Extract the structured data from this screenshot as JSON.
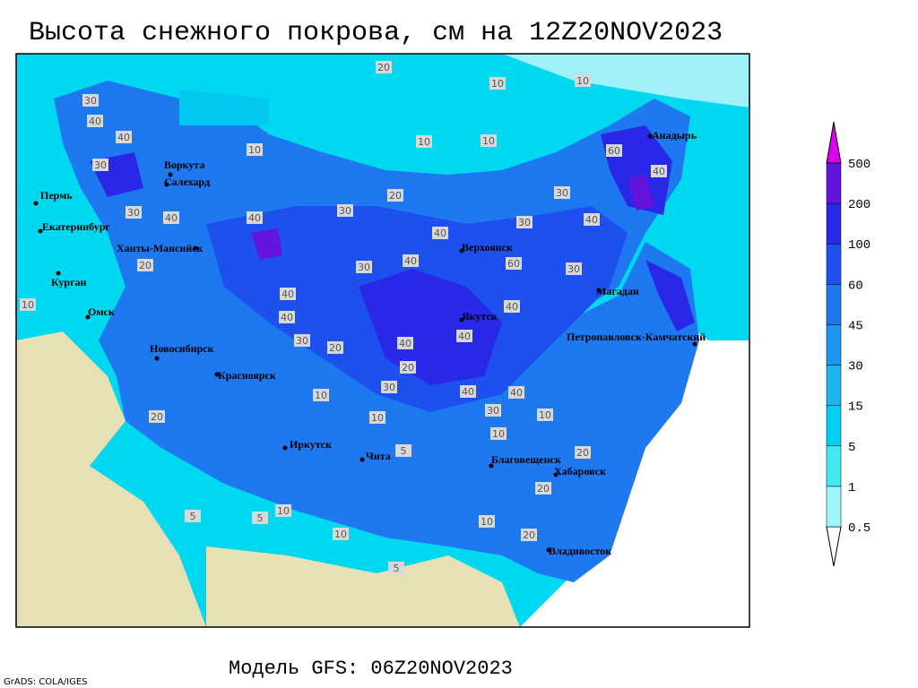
{
  "title": "Высота снежного покрова, см на 12Z20NOV2023",
  "subtitle": "Модель GFS: 06Z20NOV2023",
  "credit": "GrADS: COLA/IGES",
  "cities": [
    "Воркута",
    "Салехард",
    "Пермь",
    "Екатеринбург",
    "Ханты-Мансийск",
    "Курган",
    "Омск",
    "Новосибирск",
    "Красноярск",
    "Иркутск",
    "Чита",
    "Верхоянск",
    "Якутск",
    "Магадан",
    "Анадырь",
    "Петропавловск-Камчатский",
    "Благовещенск",
    "Хабаровск",
    "Владивосток"
  ],
  "legend": {
    "levels": [
      0.5,
      1,
      5,
      15,
      30,
      45,
      60,
      100,
      200,
      500
    ]
  },
  "contour_labels": [
    20,
    10,
    10,
    30,
    40,
    40,
    10,
    10,
    10,
    60,
    30,
    40,
    30,
    20,
    30,
    40,
    30,
    40,
    30,
    40,
    40,
    20,
    30,
    40,
    60,
    30,
    40,
    10,
    40,
    40,
    40,
    30,
    20,
    40,
    20,
    30,
    10,
    40,
    40,
    20,
    30,
    10,
    10,
    10,
    5,
    20,
    20,
    10,
    5,
    10,
    10,
    20,
    5,
    5
  ]
}
